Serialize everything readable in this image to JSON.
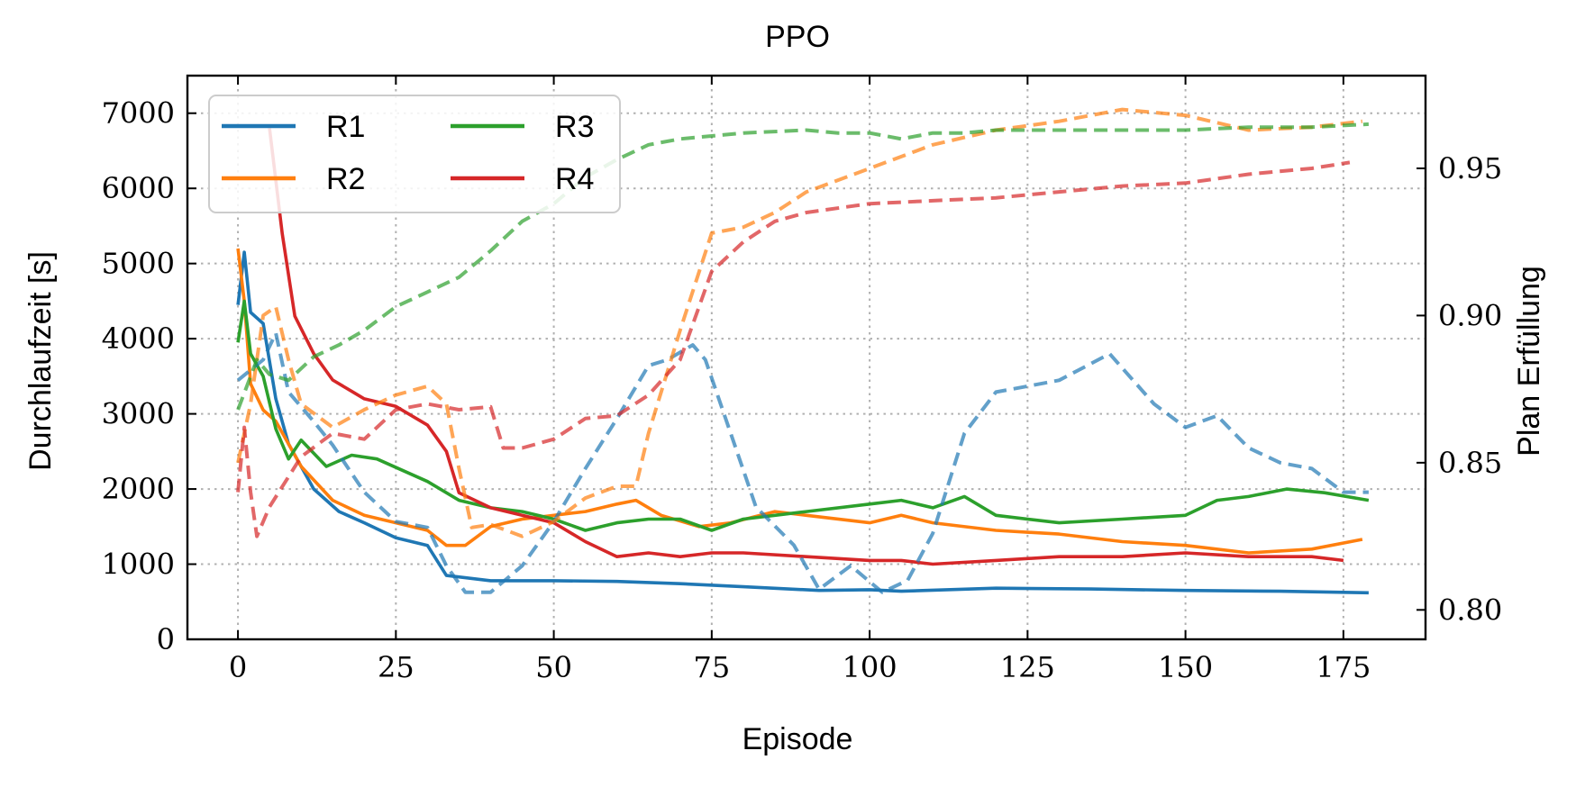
{
  "chart_data": {
    "type": "line",
    "title": "PPO",
    "xlabel": "Episode",
    "ylabel_left": "Durchlaufzeit [s]",
    "ylabel_right": "Plan Erfüllung",
    "xlim": [
      -8,
      188
    ],
    "ylim_left": [
      0,
      7500
    ],
    "ylim_right": [
      0.79,
      0.9815
    ],
    "x_ticks": [
      0,
      25,
      50,
      75,
      100,
      125,
      150,
      175
    ],
    "y_ticks_left": [
      0,
      1000,
      2000,
      3000,
      4000,
      5000,
      6000,
      7000
    ],
    "y_ticks_right": [
      0.8,
      0.85,
      0.9,
      0.95
    ],
    "y_tick_labels_right": [
      "0.80",
      "0.85",
      "0.90",
      "0.95"
    ],
    "grid": true,
    "legend_position": "top-left",
    "legend": [
      {
        "name": "R1",
        "color": "#1f77b4"
      },
      {
        "name": "R2",
        "color": "#ff7f0e"
      },
      {
        "name": "R3",
        "color": "#2ca02c"
      },
      {
        "name": "R4",
        "color": "#d62728"
      }
    ],
    "series": [
      {
        "name": "R1",
        "axis": "left",
        "style": "solid",
        "color": "#1f77b4",
        "points": [
          [
            0,
            4450
          ],
          [
            1,
            5150
          ],
          [
            2,
            4350
          ],
          [
            4,
            4200
          ],
          [
            6,
            3200
          ],
          [
            8,
            2600
          ],
          [
            12,
            2000
          ],
          [
            16,
            1700
          ],
          [
            20,
            1550
          ],
          [
            25,
            1350
          ],
          [
            30,
            1250
          ],
          [
            33,
            850
          ],
          [
            40,
            780
          ],
          [
            50,
            780
          ],
          [
            60,
            770
          ],
          [
            70,
            740
          ],
          [
            80,
            700
          ],
          [
            92,
            650
          ],
          [
            100,
            660
          ],
          [
            105,
            640
          ],
          [
            120,
            680
          ],
          [
            135,
            670
          ],
          [
            150,
            650
          ],
          [
            165,
            640
          ],
          [
            179,
            620
          ]
        ]
      },
      {
        "name": "R2",
        "axis": "left",
        "style": "solid",
        "color": "#ff7f0e",
        "points": [
          [
            0,
            5200
          ],
          [
            1,
            4500
          ],
          [
            2,
            3400
          ],
          [
            4,
            3050
          ],
          [
            6,
            2900
          ],
          [
            8,
            2600
          ],
          [
            10,
            2300
          ],
          [
            15,
            1850
          ],
          [
            20,
            1650
          ],
          [
            25,
            1550
          ],
          [
            30,
            1450
          ],
          [
            33,
            1250
          ],
          [
            36,
            1250
          ],
          [
            40,
            1500
          ],
          [
            45,
            1600
          ],
          [
            50,
            1650
          ],
          [
            55,
            1700
          ],
          [
            60,
            1800
          ],
          [
            63,
            1850
          ],
          [
            67,
            1650
          ],
          [
            73,
            1500
          ],
          [
            78,
            1550
          ],
          [
            85,
            1700
          ],
          [
            90,
            1650
          ],
          [
            100,
            1550
          ],
          [
            105,
            1650
          ],
          [
            110,
            1550
          ],
          [
            120,
            1450
          ],
          [
            130,
            1400
          ],
          [
            140,
            1300
          ],
          [
            150,
            1250
          ],
          [
            160,
            1150
          ],
          [
            170,
            1200
          ],
          [
            178,
            1330
          ]
        ]
      },
      {
        "name": "R3",
        "axis": "left",
        "style": "solid",
        "color": "#2ca02c",
        "points": [
          [
            0,
            3950
          ],
          [
            1,
            4500
          ],
          [
            2,
            3800
          ],
          [
            4,
            3500
          ],
          [
            6,
            2800
          ],
          [
            8,
            2400
          ],
          [
            10,
            2650
          ],
          [
            14,
            2300
          ],
          [
            18,
            2450
          ],
          [
            22,
            2400
          ],
          [
            26,
            2250
          ],
          [
            30,
            2100
          ],
          [
            35,
            1850
          ],
          [
            40,
            1750
          ],
          [
            45,
            1700
          ],
          [
            50,
            1600
          ],
          [
            55,
            1450
          ],
          [
            60,
            1550
          ],
          [
            65,
            1600
          ],
          [
            70,
            1600
          ],
          [
            75,
            1450
          ],
          [
            80,
            1600
          ],
          [
            85,
            1650
          ],
          [
            90,
            1700
          ],
          [
            100,
            1800
          ],
          [
            105,
            1850
          ],
          [
            110,
            1750
          ],
          [
            115,
            1900
          ],
          [
            120,
            1650
          ],
          [
            130,
            1550
          ],
          [
            140,
            1600
          ],
          [
            150,
            1650
          ],
          [
            155,
            1850
          ],
          [
            160,
            1900
          ],
          [
            166,
            2000
          ],
          [
            172,
            1950
          ],
          [
            179,
            1850
          ]
        ]
      },
      {
        "name": "R4",
        "axis": "left",
        "style": "solid",
        "color": "#d62728",
        "points": [
          [
            5,
            6800
          ],
          [
            7,
            5400
          ],
          [
            9,
            4300
          ],
          [
            12,
            3800
          ],
          [
            15,
            3450
          ],
          [
            18,
            3300
          ],
          [
            20,
            3200
          ],
          [
            25,
            3100
          ],
          [
            30,
            2850
          ],
          [
            33,
            2500
          ],
          [
            35,
            1950
          ],
          [
            40,
            1750
          ],
          [
            45,
            1650
          ],
          [
            50,
            1550
          ],
          [
            55,
            1300
          ],
          [
            60,
            1100
          ],
          [
            65,
            1150
          ],
          [
            70,
            1100
          ],
          [
            75,
            1150
          ],
          [
            80,
            1150
          ],
          [
            90,
            1100
          ],
          [
            100,
            1050
          ],
          [
            105,
            1050
          ],
          [
            110,
            1000
          ],
          [
            120,
            1050
          ],
          [
            130,
            1100
          ],
          [
            140,
            1100
          ],
          [
            150,
            1150
          ],
          [
            160,
            1100
          ],
          [
            170,
            1100
          ],
          [
            175,
            1050
          ]
        ]
      },
      {
        "name": "R1",
        "axis": "right",
        "style": "dashed",
        "color": "#1f77b4",
        "points": [
          [
            0,
            0.878
          ],
          [
            4,
            0.885
          ],
          [
            6,
            0.894
          ],
          [
            8,
            0.874
          ],
          [
            12,
            0.864
          ],
          [
            15,
            0.856
          ],
          [
            20,
            0.84
          ],
          [
            25,
            0.83
          ],
          [
            30,
            0.828
          ],
          [
            33,
            0.815
          ],
          [
            36,
            0.806
          ],
          [
            40,
            0.806
          ],
          [
            45,
            0.815
          ],
          [
            50,
            0.83
          ],
          [
            55,
            0.848
          ],
          [
            60,
            0.865
          ],
          [
            65,
            0.883
          ],
          [
            68,
            0.885
          ],
          [
            72,
            0.89
          ],
          [
            74,
            0.885
          ],
          [
            78,
            0.86
          ],
          [
            82,
            0.835
          ],
          [
            88,
            0.822
          ],
          [
            92,
            0.807
          ],
          [
            97,
            0.815
          ],
          [
            102,
            0.806
          ],
          [
            106,
            0.81
          ],
          [
            110,
            0.826
          ],
          [
            115,
            0.86
          ],
          [
            120,
            0.874
          ],
          [
            125,
            0.876
          ],
          [
            130,
            0.878
          ],
          [
            138,
            0.887
          ],
          [
            145,
            0.87
          ],
          [
            150,
            0.862
          ],
          [
            155,
            0.866
          ],
          [
            160,
            0.855
          ],
          [
            165,
            0.85
          ],
          [
            170,
            0.848
          ],
          [
            175,
            0.84
          ],
          [
            179,
            0.84
          ]
        ]
      },
      {
        "name": "R2",
        "axis": "right",
        "style": "dashed",
        "color": "#ff7f0e",
        "points": [
          [
            0,
            0.85
          ],
          [
            2,
            0.87
          ],
          [
            4,
            0.9
          ],
          [
            6,
            0.903
          ],
          [
            8,
            0.885
          ],
          [
            10,
            0.87
          ],
          [
            15,
            0.862
          ],
          [
            20,
            0.868
          ],
          [
            25,
            0.873
          ],
          [
            30,
            0.876
          ],
          [
            33,
            0.87
          ],
          [
            35,
            0.848
          ],
          [
            37,
            0.828
          ],
          [
            40,
            0.829
          ],
          [
            45,
            0.825
          ],
          [
            50,
            0.83
          ],
          [
            55,
            0.838
          ],
          [
            60,
            0.842
          ],
          [
            63,
            0.842
          ],
          [
            65,
            0.86
          ],
          [
            70,
            0.895
          ],
          [
            75,
            0.928
          ],
          [
            80,
            0.93
          ],
          [
            85,
            0.935
          ],
          [
            90,
            0.942
          ],
          [
            100,
            0.95
          ],
          [
            110,
            0.958
          ],
          [
            120,
            0.963
          ],
          [
            130,
            0.966
          ],
          [
            140,
            0.97
          ],
          [
            150,
            0.968
          ],
          [
            160,
            0.963
          ],
          [
            170,
            0.964
          ],
          [
            178,
            0.966
          ]
        ]
      },
      {
        "name": "R3",
        "axis": "right",
        "style": "dashed",
        "color": "#2ca02c",
        "points": [
          [
            0,
            0.868
          ],
          [
            3,
            0.885
          ],
          [
            5,
            0.88
          ],
          [
            8,
            0.878
          ],
          [
            12,
            0.886
          ],
          [
            16,
            0.89
          ],
          [
            20,
            0.895
          ],
          [
            25,
            0.903
          ],
          [
            30,
            0.908
          ],
          [
            35,
            0.913
          ],
          [
            40,
            0.922
          ],
          [
            45,
            0.932
          ],
          [
            50,
            0.938
          ],
          [
            55,
            0.947
          ],
          [
            60,
            0.953
          ],
          [
            65,
            0.958
          ],
          [
            70,
            0.96
          ],
          [
            75,
            0.961
          ],
          [
            80,
            0.962
          ],
          [
            90,
            0.963
          ],
          [
            95,
            0.962
          ],
          [
            100,
            0.962
          ],
          [
            105,
            0.96
          ],
          [
            110,
            0.962
          ],
          [
            115,
            0.962
          ],
          [
            120,
            0.963
          ],
          [
            130,
            0.963
          ],
          [
            140,
            0.963
          ],
          [
            150,
            0.963
          ],
          [
            160,
            0.964
          ],
          [
            170,
            0.964
          ],
          [
            179,
            0.965
          ]
        ]
      },
      {
        "name": "R4",
        "axis": "right",
        "style": "dashed",
        "color": "#d62728",
        "points": [
          [
            0,
            0.84
          ],
          [
            1,
            0.862
          ],
          [
            2,
            0.84
          ],
          [
            3,
            0.825
          ],
          [
            5,
            0.835
          ],
          [
            10,
            0.852
          ],
          [
            15,
            0.86
          ],
          [
            20,
            0.858
          ],
          [
            25,
            0.868
          ],
          [
            30,
            0.87
          ],
          [
            35,
            0.868
          ],
          [
            40,
            0.869
          ],
          [
            42,
            0.855
          ],
          [
            45,
            0.855
          ],
          [
            50,
            0.858
          ],
          [
            55,
            0.865
          ],
          [
            60,
            0.866
          ],
          [
            65,
            0.873
          ],
          [
            70,
            0.885
          ],
          [
            75,
            0.915
          ],
          [
            80,
            0.925
          ],
          [
            85,
            0.932
          ],
          [
            90,
            0.935
          ],
          [
            100,
            0.938
          ],
          [
            110,
            0.939
          ],
          [
            120,
            0.94
          ],
          [
            130,
            0.942
          ],
          [
            140,
            0.944
          ],
          [
            150,
            0.945
          ],
          [
            160,
            0.948
          ],
          [
            170,
            0.95
          ],
          [
            176,
            0.952
          ]
        ]
      }
    ]
  }
}
